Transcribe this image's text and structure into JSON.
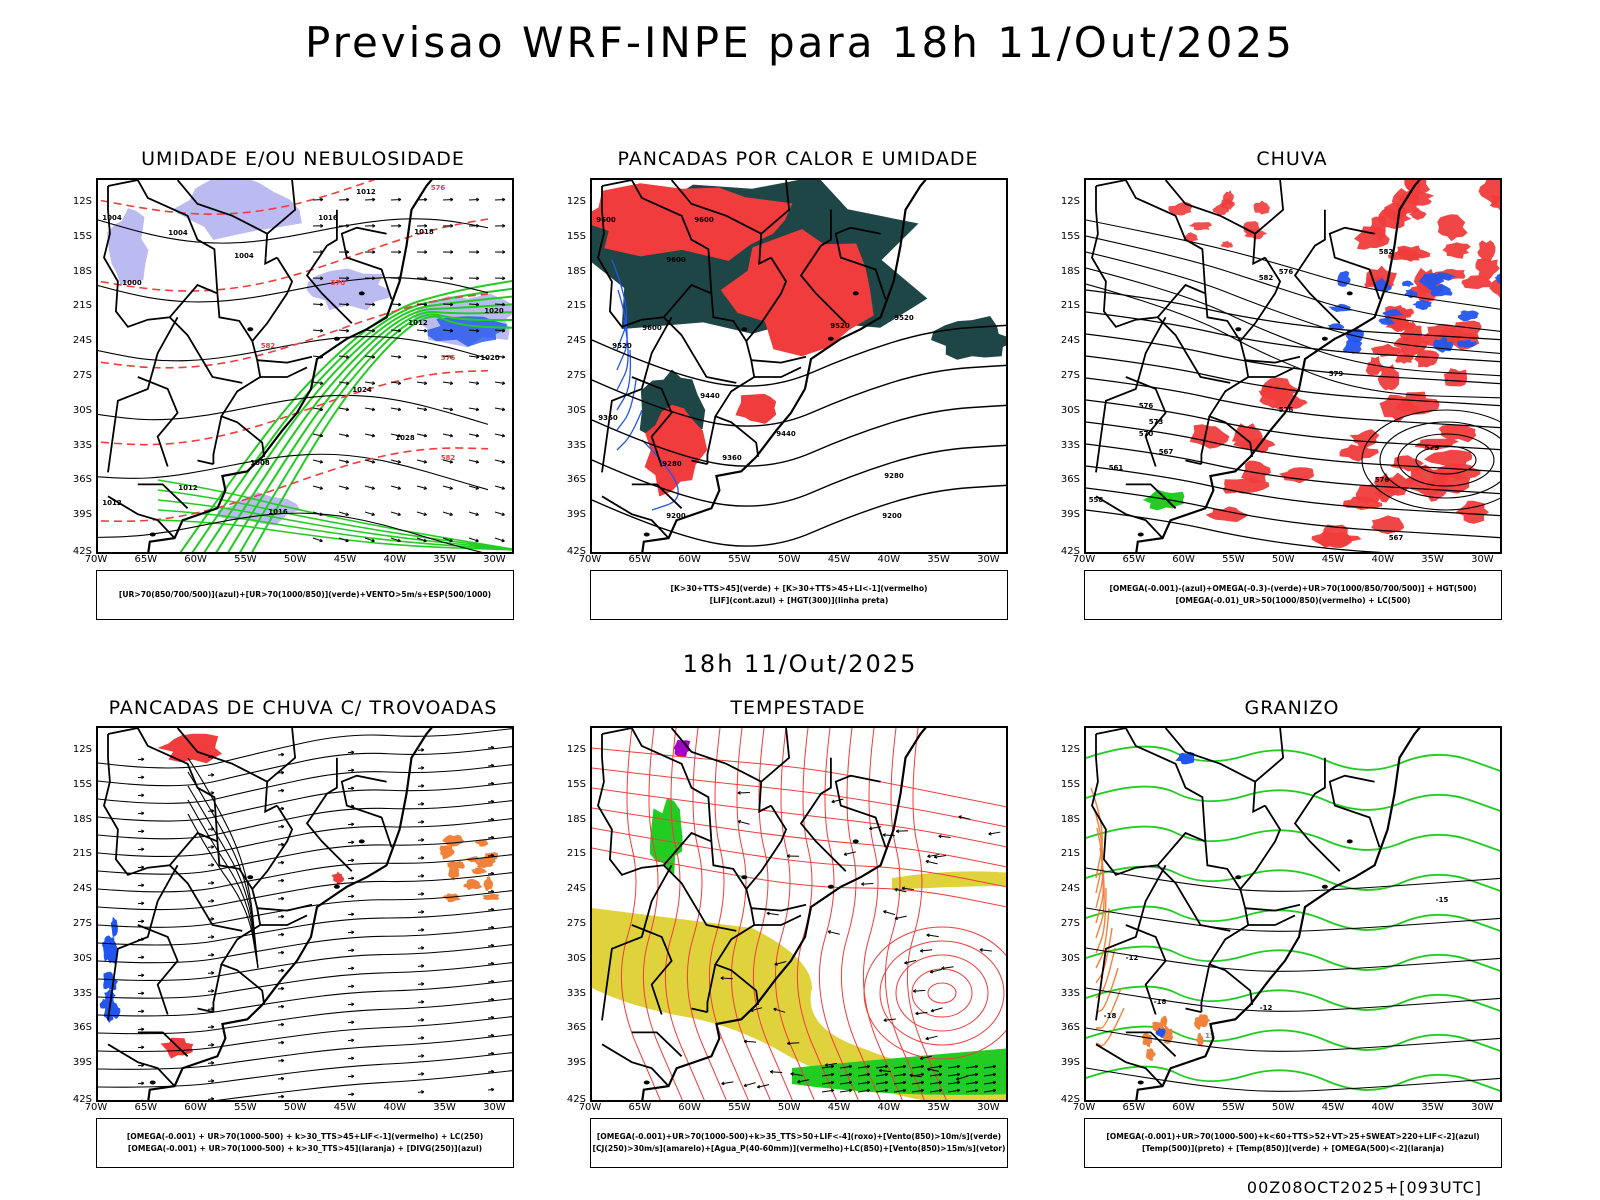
{
  "header": {
    "title": "Previsao WRF-INPE  para 18h 11/Out/2025"
  },
  "mid_title": "18h 11/Out/2025",
  "footer": "00Z08OCT2025+[093UTC]",
  "axes": {
    "lat_labels": [
      "12S",
      "15S",
      "18S",
      "21S",
      "24S",
      "27S",
      "30S",
      "33S",
      "36S",
      "39S",
      "42S"
    ],
    "lon_labels": [
      "70W",
      "65W",
      "60W",
      "55W",
      "50W",
      "45W",
      "40W",
      "35W",
      "30W"
    ]
  },
  "colors": {
    "red": "#f03c3c",
    "green": "#22cc22",
    "blue": "#2255ee",
    "lavender": "#b4b4f0",
    "darkteal": "#1e4646",
    "yellow": "#e0d23c",
    "orange": "#f0823c",
    "purple": "#a000c8"
  },
  "panels": [
    {
      "title": "UMIDADE E/OU NEBULOSIDADE",
      "legend": [
        "[UR>70(850/700/500)](azul)+[UR>70(1000/850)](verde)+VENTO>5m/s+ESP(500/1000)"
      ]
    },
    {
      "title": "PANCADAS POR CALOR E UMIDADE",
      "legend": [
        "[K>30+TTS>45](verde) + [K>30+TTS>45+LI<-1](vermelho)",
        "[LIF](cont.azul) + [HGT(300)](linha preta)"
      ]
    },
    {
      "title": "CHUVA",
      "legend": [
        "[OMEGA(-0.001)-(azul)+OMEGA(-0.3)-(verde)+UR>70(1000/850/700/500)] + HGT(500)",
        "[OMEGA(-0.01)_UR>50(1000/850)(vermelho) + LC(500)"
      ]
    },
    {
      "title": "PANCADAS DE CHUVA C/ TROVOADAS",
      "legend": [
        "[OMEGA(-0.001) + UR>70(1000-500) + k>30_TTS>45+LIF<-1](vermelho) + LC(250)",
        "[OMEGA(-0.001) + UR>70(1000-500) + k>30_TTS>45](laranja) + [DIVG(250)](azul)"
      ]
    },
    {
      "title": "TEMPESTADE",
      "legend": [
        "[OMEGA(-0.001)+UR>70(1000-500)+k>35_TTS>50+LIF<-4](roxo)+[Vento(850)>10m/s](verde)",
        "[CJ(250)>30m/s](amarelo)+[Agua_P(40-60mm)](vermelho)+LC(850)+[Vento(850)>15m/s](vetor)"
      ]
    },
    {
      "title": "GRANIZO",
      "legend": [
        "[OMEGA(-0.001)+UR>70(1000-500)+k<60+TTS>52+VT>25+SWEAT>220+LIF<-2](azul)",
        "[Temp(500)](preto) + [Temp(850)](verde) + [OMEGA(500)<-2](laranja)"
      ]
    }
  ],
  "contour_labels": {
    "p1": [
      "1004",
      "1004",
      "1004",
      "1012",
      "1016",
      "1018",
      "1020",
      "1012",
      "1012",
      "1016",
      "1024",
      "1028",
      "1020",
      "1008",
      "1000",
      "1012",
      "576",
      "570",
      "582",
      "582",
      "576"
    ],
    "p2": [
      "9600",
      "9600",
      "9600",
      "9520",
      "9440",
      "9520",
      "9360",
      "9280",
      "9200",
      "9440",
      "9360",
      "9280",
      "9200",
      "9600",
      "9520"
    ],
    "p3": [
      "582",
      "582",
      "579",
      "573",
      "576",
      "570",
      "567",
      "561",
      "558",
      "576",
      "576",
      "579",
      "576",
      "567"
    ],
    "p6": [
      "-15",
      "-12",
      "-18",
      "-12",
      "-18",
      "15"
    ]
  }
}
